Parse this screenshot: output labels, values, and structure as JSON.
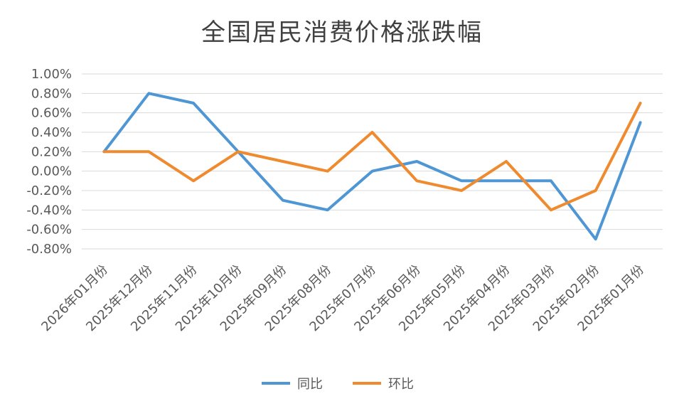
{
  "chart_data": {
    "type": "line",
    "title": "全国居民消费价格涨跌幅",
    "categories": [
      "2026年01月份",
      "2025年12月份",
      "2025年11月份",
      "2025年10月份",
      "2025年09月份",
      "2025年08月份",
      "2025年07月份",
      "2025年06月份",
      "2025年05月份",
      "2025年04月份",
      "2025年03月份",
      "2025年02月份",
      "2025年01月份"
    ],
    "series": [
      {
        "name": "同比",
        "color": "#4e96d4",
        "values": [
          0.2,
          0.8,
          0.7,
          0.2,
          -0.3,
          -0.4,
          0.0,
          0.1,
          -0.1,
          -0.1,
          -0.1,
          -0.7,
          0.5
        ]
      },
      {
        "name": "环比",
        "color": "#ef8a2e",
        "values": [
          0.2,
          0.2,
          -0.1,
          0.2,
          0.1,
          0.0,
          0.4,
          -0.1,
          -0.2,
          0.1,
          -0.4,
          -0.2,
          0.7
        ]
      }
    ],
    "ylim": [
      -0.8,
      1.0
    ],
    "yticks": [
      "1.00%",
      "0.80%",
      "0.60%",
      "0.40%",
      "0.20%",
      "0.00%",
      "-0.20%",
      "-0.40%",
      "-0.60%",
      "-0.80%"
    ],
    "grid": true,
    "legend_position": "bottom",
    "xlabel": "",
    "ylabel": ""
  }
}
